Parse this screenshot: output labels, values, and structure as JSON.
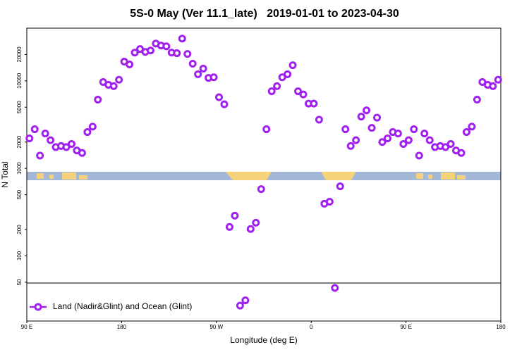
{
  "chart_data": {
    "type": "scatter",
    "title": "5S-0 May (Ver 11.1_late)   2019-01-01 to 2023-04-30",
    "xlabel": "Longitude (deg E)",
    "ylabel": "N Total",
    "log_y": true,
    "xlim": [
      90,
      540
    ],
    "ylim": [
      18,
      40000
    ],
    "xticks": [
      {
        "value": 90,
        "label": "90 E"
      },
      180,
      {
        "value": 270,
        "label": "90 W"
      },
      {
        "value": 360,
        "label": "0"
      },
      {
        "value": 450,
        "label": "90 E"
      },
      {
        "value": 540,
        "label": "180"
      }
    ],
    "yticks": [
      50,
      100,
      200,
      500,
      1000,
      2000,
      5000,
      10000,
      20000
    ],
    "legend": "bottom-left",
    "series": [
      {
        "name": "Land (Nadir&Glint) and Ocean (Glint)",
        "color": "#a020f0",
        "x": [
          92.5,
          97.5,
          102.5,
          107.5,
          112.5,
          117.5,
          122.5,
          127.5,
          132.5,
          137.5,
          142.5,
          147.5,
          152.5,
          157.5,
          162.5,
          167.5,
          172.5,
          177.5,
          182.5,
          187.5,
          192.5,
          197.5,
          202.5,
          207.5,
          212.5,
          217.5,
          222.5,
          227.5,
          232.5,
          237.5,
          242.5,
          247.5,
          252.5,
          257.5,
          262.5,
          267.5,
          272.5,
          277.5,
          282.5,
          287.5,
          292.5,
          297.5,
          302.5,
          307.5,
          312.5,
          317.5,
          322.5,
          327.5,
          332.5,
          337.5,
          342.5,
          347.5,
          352.5,
          357.5,
          362.5,
          367.5,
          372.5,
          377.5,
          382.5,
          387.5,
          392.5,
          397.5,
          402.5,
          407.5,
          412.5,
          417.5,
          422.5,
          427.5,
          432.5,
          437.5,
          442.5,
          447.5,
          452.5,
          457.5,
          462.5,
          467.5,
          472.5,
          477.5,
          482.5,
          487.5,
          492.5,
          497.5,
          502.5,
          507.5,
          512.5,
          517.5,
          522.5,
          527.5,
          532.5,
          537.5
        ],
        "values": [
          2200,
          2800,
          1400,
          2500,
          2100,
          1750,
          1800,
          1750,
          1900,
          1600,
          1500,
          2600,
          3000,
          6100,
          9700,
          9000,
          8700,
          10300,
          16600,
          15400,
          21000,
          23100,
          21400,
          22200,
          26700,
          25300,
          24800,
          21000,
          20700,
          30400,
          20300,
          15700,
          11900,
          13800,
          10800,
          11000,
          6500,
          5400,
          214,
          288,
          27,
          31,
          203,
          239,
          579,
          2800,
          7600,
          8700,
          11000,
          11900,
          15100,
          7600,
          7000,
          5500,
          5500,
          3600,
          394,
          416,
          43,
          624,
          2800,
          1800,
          2100,
          3900,
          4600,
          2900,
          3800,
          2000,
          2200,
          2600,
          2500,
          1900,
          2100,
          2800,
          1400,
          2500,
          2100,
          1750,
          1800,
          1750,
          1900,
          1600,
          1500,
          2600,
          3000,
          6100,
          9700,
          9000,
          8700,
          10300
        ]
      }
    ]
  }
}
